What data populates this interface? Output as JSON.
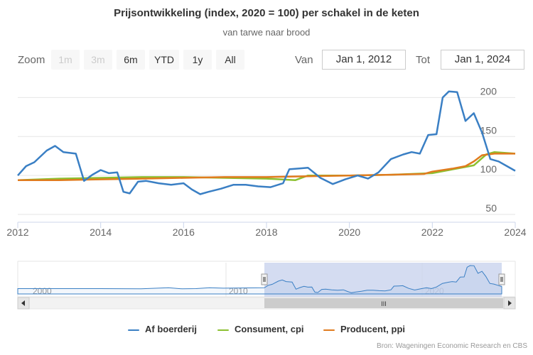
{
  "header": {
    "title": "Prijsontwikkeling (index, 2020 = 100) per schakel in de keten",
    "subtitle": "van tarwe naar brood"
  },
  "range_selector": {
    "zoom_label": "Zoom",
    "buttons": [
      "1m",
      "3m",
      "6m",
      "YTD",
      "1y",
      "All"
    ],
    "disabled": [
      true,
      true,
      false,
      false,
      false,
      false
    ],
    "from_label": "Van",
    "from_value": "Jan 1, 2012",
    "to_label": "Tot",
    "to_value": "Jan 1, 2024"
  },
  "navigator": {
    "year_labels": [
      "2000",
      "2010",
      "2020"
    ],
    "scrollbar_grip": "III"
  },
  "credits": "Bron: Wageningen Economic Research en CBS",
  "colors": {
    "farm": "#3a7fc4",
    "cpi": "#8cc030",
    "ppi": "#e07b1e",
    "navigator_mask": "#c9d3ee",
    "scrollbar": "#cccccc",
    "grid": "#e6e6e6"
  },
  "chart_data": {
    "type": "line",
    "title": "Prijsontwikkeling (index, 2020 = 100) per schakel in de keten",
    "subtitle": "van tarwe naar brood",
    "xlabel": "",
    "ylabel": "",
    "xlim": [
      2012,
      2024
    ],
    "ylim": [
      40,
      225
    ],
    "x_ticks": [
      "2012",
      "2014",
      "2016",
      "2018",
      "2020",
      "2022",
      "2024"
    ],
    "y_ticks": [
      "50",
      "100",
      "150",
      "200"
    ],
    "grid": "horizontal",
    "legend_position": "bottom",
    "series": [
      {
        "name": "Af boerderij",
        "x": [
          2012.0,
          2012.2,
          2012.4,
          2012.7,
          2012.9,
          2013.1,
          2013.4,
          2013.6,
          2013.8,
          2014.0,
          2014.2,
          2014.4,
          2014.55,
          2014.7,
          2014.9,
          2015.1,
          2015.4,
          2015.7,
          2016.0,
          2016.2,
          2016.4,
          2016.6,
          2016.9,
          2017.2,
          2017.5,
          2017.8,
          2018.1,
          2018.4,
          2018.55,
          2018.8,
          2019.0,
          2019.3,
          2019.6,
          2019.9,
          2020.2,
          2020.45,
          2020.7,
          2021.0,
          2021.3,
          2021.5,
          2021.7,
          2021.9,
          2022.1,
          2022.25,
          2022.4,
          2022.6,
          2022.8,
          2023.0,
          2023.2,
          2023.4,
          2023.6,
          2023.8,
          2024.0
        ],
        "y": [
          100,
          112,
          117,
          132,
          138,
          130,
          128,
          93,
          101,
          107,
          103,
          104,
          79,
          77,
          92,
          93,
          90,
          88,
          90,
          82,
          76,
          79,
          83,
          88,
          88,
          86,
          85,
          90,
          108,
          109,
          110,
          97,
          89,
          95,
          100,
          96,
          104,
          121,
          127,
          130,
          128,
          152,
          153,
          200,
          208,
          207,
          170,
          180,
          155,
          121,
          118,
          112,
          106
        ]
      },
      {
        "name": "Consument, cpi",
        "x": [
          2012.0,
          2013.0,
          2014.0,
          2015.0,
          2016.0,
          2017.0,
          2018.0,
          2018.7,
          2019.0,
          2020.0,
          2021.0,
          2021.5,
          2022.0,
          2022.5,
          2022.8,
          2023.0,
          2023.3,
          2023.5,
          2024.0
        ],
        "y": [
          94,
          96,
          97,
          98,
          98,
          97,
          96,
          94,
          100,
          100,
          101,
          102,
          103,
          108,
          111,
          113,
          127,
          130,
          128
        ]
      },
      {
        "name": "Producent, ppi",
        "x": [
          2012.0,
          2013.0,
          2014.0,
          2015.0,
          2016.0,
          2017.0,
          2018.0,
          2019.0,
          2020.0,
          2021.0,
          2021.8,
          2022.0,
          2022.5,
          2022.8,
          2023.0,
          2023.2,
          2023.5,
          2024.0
        ],
        "y": [
          94,
          94,
          95,
          96,
          97,
          98,
          98,
          99,
          100,
          101,
          102,
          105,
          109,
          112,
          118,
          126,
          128,
          128
        ]
      }
    ]
  }
}
